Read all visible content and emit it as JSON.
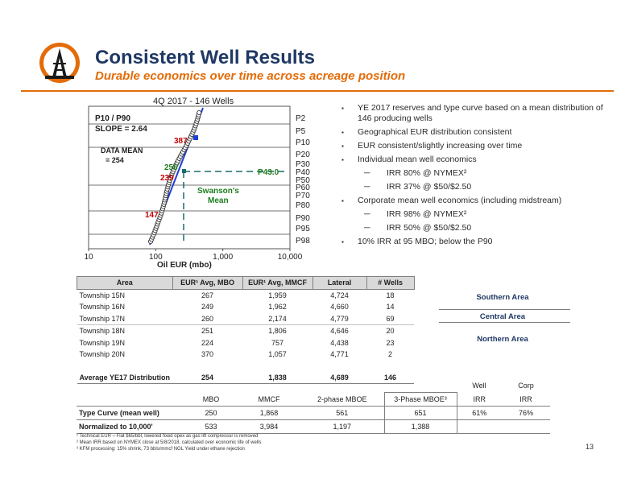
{
  "header": {
    "title": "Consistent Well Results",
    "subtitle": "Durable economics over time across acreage position"
  },
  "chart": {
    "title": "4Q 2017 - 146 Wells",
    "xlabel": "Oil EUR (mbo)",
    "x_ticks": [
      "10",
      "100",
      "1,000",
      "10,000"
    ],
    "percentiles": [
      "P2",
      "P5",
      "P10",
      "P20",
      "P30",
      "P40",
      "P50",
      "P60",
      "P70",
      "P80",
      "P90",
      "P95",
      "P98"
    ],
    "slope_note_1": "P10 / P90",
    "slope_note_2": "SLOPE = 2.64",
    "mean_note_1": "DATA MEAN",
    "mean_note_2": "= 254",
    "label_387": "387",
    "label_256": "256",
    "label_239": "239",
    "label_147": "147",
    "p43": "P43.0",
    "swanson_1": "Swanson's",
    "swanson_2": "Mean",
    "colors": {
      "fit_line": "#1f3fd6",
      "red": "#c00000",
      "green": "#1e7d1e"
    }
  },
  "chart_data": {
    "type": "scatter",
    "title": "4Q 2017 - 146 Wells",
    "xlabel": "Oil EUR (mbo)",
    "ylabel": "",
    "x_scale": "log",
    "xlim": [
      10,
      10000
    ],
    "y_labels": [
      "P2",
      "P5",
      "P10",
      "P20",
      "P30",
      "P40",
      "P50",
      "P60",
      "P70",
      "P80",
      "P90",
      "P95",
      "P98"
    ],
    "annotations": [
      {
        "percentile": "P10",
        "value": 387
      },
      {
        "percentile": "P43.0",
        "value": 256
      },
      {
        "percentile": "P50",
        "value": 239
      },
      {
        "percentile": "P90",
        "value": 147
      }
    ],
    "data_mean": 254,
    "p10_p90_slope": 2.64
  },
  "bullets": [
    {
      "type": "main",
      "text": "YE 2017 reserves and type curve based on a mean distribution of 146 producing wells"
    },
    {
      "type": "main",
      "text": "Geographical EUR distribution consistent"
    },
    {
      "type": "main",
      "text": "EUR consistent/slightly increasing over time"
    },
    {
      "type": "main",
      "text": "Individual mean well economics"
    },
    {
      "type": "sub",
      "text": "IRR 80% @ NYMEX²"
    },
    {
      "type": "sub",
      "text": "IRR 37% @ $50/$2.50"
    },
    {
      "type": "main",
      "text": "Corporate mean well economics (including midstream)"
    },
    {
      "type": "sub",
      "text": "IRR 98% @ NYMEX²"
    },
    {
      "type": "sub",
      "text": "IRR 50% @ $50/$2.50"
    },
    {
      "type": "main",
      "text": "10% IRR at 95 MBO; below the P90"
    }
  ],
  "bullet_mark": "▪",
  "sub_mark": "─",
  "table": {
    "headers": [
      "Area",
      "EUR¹ Avg, MBO",
      "EUR¹ Avg, MMCF",
      "Lateral",
      "# Wells"
    ],
    "rows": [
      [
        "Township 15N",
        "267",
        "1,959",
        "4,724",
        "18"
      ],
      [
        "Township 16N",
        "249",
        "1,962",
        "4,660",
        "14"
      ],
      [
        "Township 17N",
        "260",
        "2,174",
        "4,779",
        "69"
      ],
      [
        "Township 18N",
        "251",
        "1,806",
        "4,646",
        "20"
      ],
      [
        "Township 19N",
        "224",
        "757",
        "4,438",
        "23"
      ],
      [
        "Township 20N",
        "370",
        "1,057",
        "4,771",
        "2"
      ]
    ],
    "total": [
      "Average YE17  Distribution",
      "254",
      "1,838",
      "4,689",
      "146"
    ],
    "areas": {
      "southern": "Southern Area",
      "central": "Central Area",
      "northern": "Northern Area"
    }
  },
  "type_curve": {
    "group_headers": [
      "Well",
      "Corp"
    ],
    "headers": [
      "MBO",
      "MMCF",
      "2-phase MBOE",
      "3-Phase MBOE³",
      "IRR",
      "IRR"
    ],
    "rows": [
      [
        "Type Curve (mean well)",
        "250",
        "1,868",
        "561",
        "651",
        "61%",
        "76%"
      ],
      [
        "Normalized to 10,000'",
        "533",
        "3,984",
        "1,197",
        "1,388",
        "",
        ""
      ]
    ]
  },
  "footnotes": [
    "¹ Technical EUR – Flat $65/bbl, lowered fixed opex as gas lift compressor is removed",
    "² Mean IRR based on NYMEX close at 5/8/2018, calculated over economic life of wells",
    "³ KFM processing: 15% shrink, 73 bbls/mmcf NGL Yield under ethane rejection"
  ],
  "page_number": "13"
}
